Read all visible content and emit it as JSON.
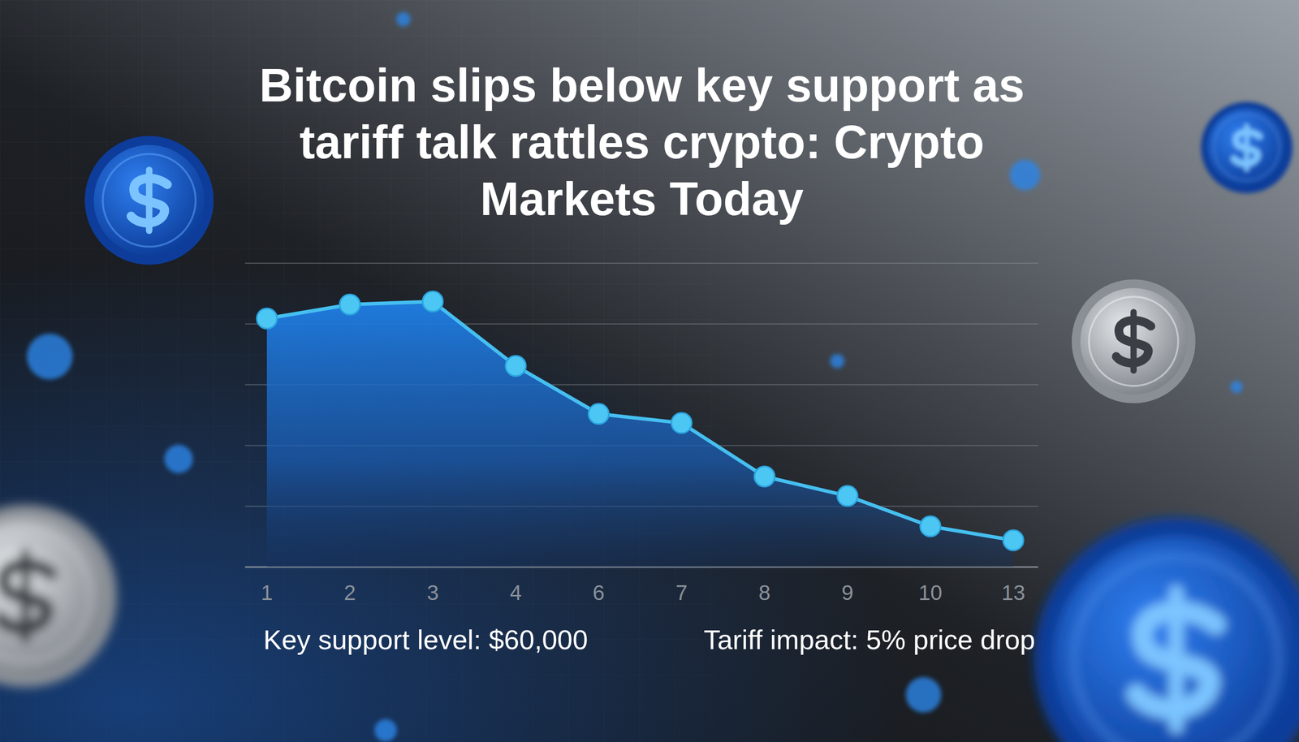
{
  "chart_data": {
    "type": "line",
    "title": "Bitcoin slips below key support as tariff talk rattles crypto: Crypto Markets Today",
    "categories": [
      "1",
      "2",
      "3",
      "4",
      "6",
      "7",
      "8",
      "9",
      "10",
      "13"
    ],
    "values": [
      4.09,
      4.32,
      4.37,
      3.31,
      2.52,
      2.37,
      1.49,
      1.17,
      0.67,
      0.44
    ],
    "color": "#45bff0",
    "ylim": [
      0,
      5
    ],
    "yticks": [
      0,
      1,
      2,
      3,
      4,
      5
    ],
    "grid": true,
    "tick_labels": "x",
    "marker": "circle",
    "annotations": [
      "Key support level: $60,000",
      "Tariff impact: 5% price drop"
    ]
  }
}
